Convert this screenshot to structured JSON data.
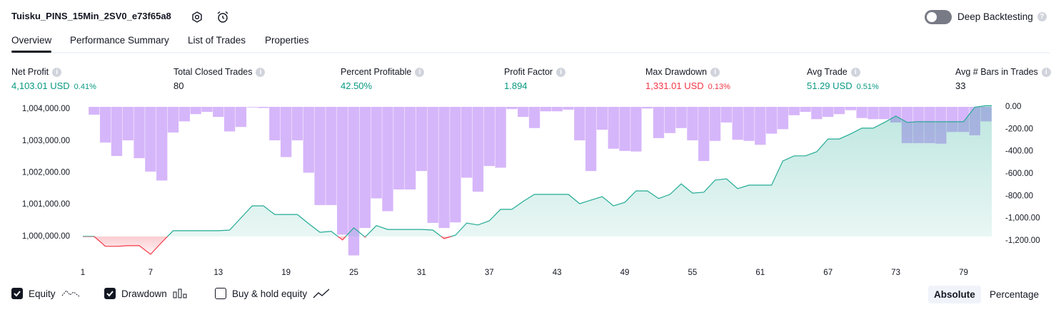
{
  "header": {
    "title": "Tuisku_PINS_15Min_2SV0_e73f65a8",
    "toggle_label": "Deep Backtesting",
    "toggle_on": false
  },
  "tabs": [
    "Overview",
    "Performance Summary",
    "List of Trades",
    "Properties"
  ],
  "active_tab": 0,
  "metrics": [
    {
      "label": "Net Profit",
      "value": "4,103.01 USD",
      "percent": "0.41%",
      "tone": "up"
    },
    {
      "label": "Total Closed Trades",
      "value": "80",
      "tone": "neutral"
    },
    {
      "label": "Percent Profitable",
      "value": "42.50%",
      "tone": "up"
    },
    {
      "label": "Profit Factor",
      "value": "1.894",
      "tone": "up"
    },
    {
      "label": "Max Drawdown",
      "value": "1,331.01 USD",
      "percent": "0.13%",
      "tone": "down"
    },
    {
      "label": "Avg Trade",
      "value": "51.29 USD",
      "percent": "0.51%",
      "tone": "up"
    },
    {
      "label": "Avg # Bars in Trades",
      "value": "33",
      "tone": "neutral"
    }
  ],
  "chart_data": {
    "type": "combo",
    "xlim": [
      1,
      81.5
    ],
    "xticks": [
      1,
      7,
      13,
      19,
      25,
      31,
      37,
      43,
      49,
      55,
      61,
      67,
      73,
      79
    ],
    "ylim": [
      999260,
      1004180
    ],
    "yticks": [
      {
        "value": 1000000,
        "label": "1,000,000.00"
      },
      {
        "value": 1001000,
        "label": "1,001,000.00"
      },
      {
        "value": 1002000,
        "label": "1,002,000.00"
      },
      {
        "value": 1003000,
        "label": "1,003,000.00"
      },
      {
        "value": 1004000,
        "label": "1,004,000.00"
      }
    ],
    "y2lim": [
      -1372,
      32
    ],
    "y2ticks": [
      {
        "value": 0,
        "label": "0.00"
      },
      {
        "value": -200,
        "label": "-200.00"
      },
      {
        "value": -400,
        "label": "-400.00"
      },
      {
        "value": -600,
        "label": "-600.00"
      },
      {
        "value": -800,
        "label": "-800.00"
      },
      {
        "value": -1000,
        "label": "-1,000.00"
      },
      {
        "value": -1200,
        "label": "-1,200.00"
      }
    ],
    "series": [
      {
        "name": "Equity",
        "kind": "line",
        "checked": true,
        "color": "#22ab94",
        "color_below": "#f23645",
        "x": [
          1,
          2,
          3,
          4,
          5,
          6,
          7,
          8,
          9,
          10,
          11,
          12,
          13,
          14,
          15,
          16,
          17,
          18,
          19,
          20,
          21,
          22,
          23,
          24,
          25,
          26,
          27,
          28,
          29,
          30,
          31,
          32,
          33,
          34,
          35,
          36,
          37,
          38,
          39,
          40,
          41,
          42,
          43,
          44,
          45,
          46,
          47,
          48,
          49,
          50,
          51,
          52,
          53,
          54,
          55,
          56,
          57,
          58,
          59,
          60,
          61,
          62,
          63,
          64,
          65,
          66,
          67,
          68,
          69,
          70,
          71,
          72,
          73,
          74,
          75,
          76,
          77,
          78,
          79,
          80,
          81
        ],
        "values": [
          1000000,
          1000000,
          999690,
          999690,
          999710,
          999710,
          999440,
          999820,
          1000180,
          1000180,
          1000180,
          1000180,
          1000180,
          1000200,
          1000580,
          1000960,
          1000960,
          1000690,
          1000690,
          1000690,
          1000400,
          1000130,
          1000160,
          999890,
          1000270,
          999980,
          1000340,
          1000220,
          1000220,
          1000220,
          1000220,
          1000200,
          999930,
          1000040,
          1000420,
          1000360,
          1000490,
          1000850,
          1000850,
          1001100,
          1001320,
          1001320,
          1001320,
          1001320,
          1001030,
          1001140,
          1001250,
          1000960,
          1001070,
          1001430,
          1001430,
          1001190,
          1001320,
          1001650,
          1001360,
          1001390,
          1001770,
          1001810,
          1001500,
          1001610,
          1001610,
          1001610,
          1002370,
          1002530,
          1002530,
          1002660,
          1003060,
          1003060,
          1003220,
          1003400,
          1003400,
          1003580,
          1003780,
          1003580,
          1003600,
          1003600,
          1003600,
          1003600,
          1003600,
          1004060,
          1004103
        ]
      },
      {
        "name": "Drawdown",
        "kind": "bar",
        "axis": "y2",
        "checked": true,
        "color": "#d6b6fa",
        "x": [
          2,
          3,
          4,
          5,
          6,
          7,
          8,
          9,
          10,
          11,
          12,
          13,
          14,
          15,
          16,
          17,
          18,
          19,
          20,
          21,
          22,
          23,
          24,
          25,
          26,
          27,
          28,
          29,
          30,
          31,
          32,
          33,
          34,
          35,
          36,
          37,
          38,
          39,
          40,
          41,
          42,
          43,
          44,
          45,
          46,
          47,
          48,
          49,
          50,
          51,
          52,
          53,
          54,
          55,
          56,
          57,
          58,
          59,
          60,
          61,
          62,
          63,
          64,
          65,
          66,
          67,
          68,
          69,
          70,
          71,
          72,
          73,
          74,
          75,
          76,
          77,
          78,
          79,
          80,
          81
        ],
        "values": [
          -70,
          -320,
          -440,
          -300,
          -460,
          -580,
          -660,
          -230,
          -130,
          -65,
          -45,
          -90,
          -220,
          -180,
          -5,
          -10,
          -300,
          -450,
          -300,
          -590,
          -880,
          -880,
          -1145,
          -1331,
          -1085,
          -820,
          -935,
          -740,
          -740,
          -575,
          -1040,
          -1085,
          -1035,
          -635,
          -760,
          -530,
          -545,
          -20,
          -90,
          -190,
          -40,
          -40,
          -25,
          -300,
          -575,
          -205,
          -375,
          -395,
          -400,
          -15,
          -280,
          -235,
          -190,
          -300,
          -485,
          -305,
          -140,
          -295,
          -305,
          -340,
          -240,
          -200,
          -75,
          -45,
          -110,
          -90,
          -65,
          -30,
          -100,
          -110,
          -110,
          -140,
          -325,
          -325,
          -325,
          -330,
          -225,
          -225,
          -255,
          -130
        ]
      }
    ]
  },
  "footer": {
    "extra_toggle": {
      "label": "Buy & hold equity",
      "checked": false
    },
    "scale_buttons": [
      "Absolute",
      "Percentage"
    ],
    "active_button": 0
  }
}
